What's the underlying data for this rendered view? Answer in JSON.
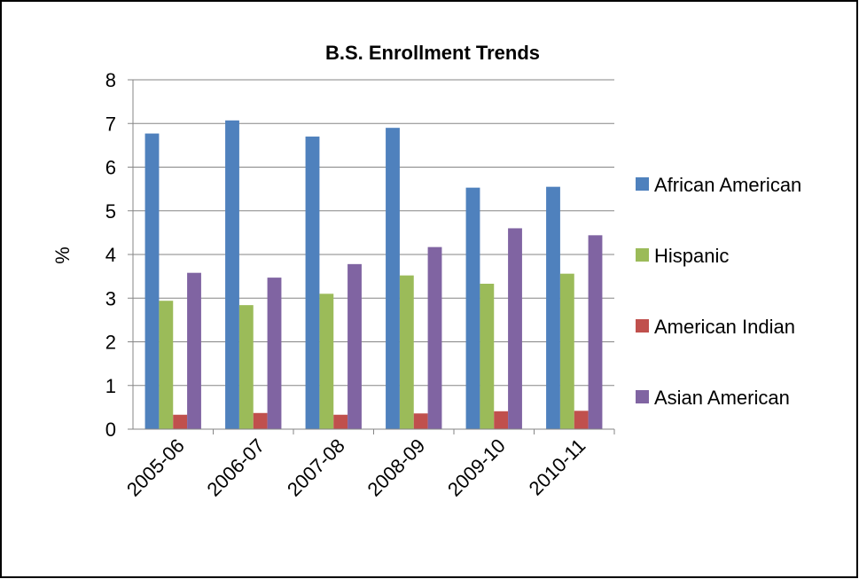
{
  "chart_data": {
    "type": "bar",
    "title": "B.S. Enrollment Trends",
    "ylabel": "%",
    "xlabel": "",
    "ylim": [
      0,
      8
    ],
    "yticks": [
      0,
      1,
      2,
      3,
      4,
      5,
      6,
      7,
      8
    ],
    "grid": true,
    "legend_position": "right",
    "categories": [
      "2005-06",
      "2006-07",
      "2007-08",
      "2008-09",
      "2009-10",
      "2010-11"
    ],
    "series": [
      {
        "name": "African American",
        "color": "#4f81bd",
        "values": [
          6.77,
          7.07,
          6.7,
          6.9,
          5.53,
          5.55
        ]
      },
      {
        "name": "Hispanic",
        "color": "#9bbb59",
        "values": [
          2.94,
          2.84,
          3.1,
          3.52,
          3.33,
          3.56
        ]
      },
      {
        "name": "American Indian",
        "color": "#c0504d",
        "values": [
          0.33,
          0.37,
          0.33,
          0.36,
          0.41,
          0.42
        ]
      },
      {
        "name": "Asian American",
        "color": "#8064a2",
        "values": [
          3.58,
          3.47,
          3.78,
          4.17,
          4.6,
          4.44
        ]
      }
    ]
  }
}
